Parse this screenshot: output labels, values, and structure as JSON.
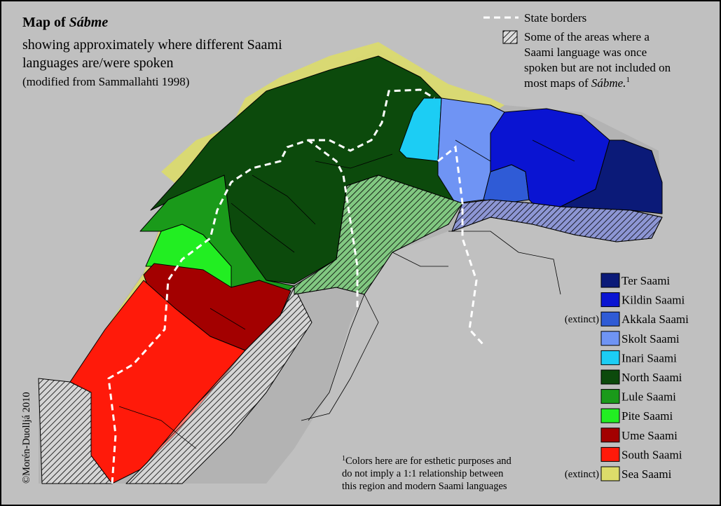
{
  "title": {
    "prefix": "Map of",
    "name": "Sábme"
  },
  "subtitle": [
    "showing approximately where different Saami",
    "languages are/were spoken"
  ],
  "source": "(modified from Sammallahti 1998)",
  "key": {
    "borders": "State borders",
    "hatched": {
      "lines": [
        "Some of the areas where a",
        "Saami language was once",
        "spoken but are not included on"
      ],
      "last": "most maps of",
      "name": "Sábme.",
      "note": "1"
    }
  },
  "legend": [
    {
      "name": "Ter Saami",
      "color": "#0b1a78"
    },
    {
      "name": "Kildin Saami",
      "color": "#0a14d2"
    },
    {
      "name": "Akkala Saami",
      "color": "#2f5bd6",
      "status": "(extinct)"
    },
    {
      "name": "Skolt Saami",
      "color": "#6f94f4"
    },
    {
      "name": "Inari Saami",
      "color": "#1ccdf4"
    },
    {
      "name": "North Saami",
      "color": "#0c4a0c"
    },
    {
      "name": "Lule Saami",
      "color": "#1a9a1a"
    },
    {
      "name": "Pite Saami",
      "color": "#22ee22"
    },
    {
      "name": "Ume Saami",
      "color": "#a30000"
    },
    {
      "name": "South Saami",
      "color": "#ff1a0a"
    },
    {
      "name": "Sea Saami",
      "color": "#dcdc6a",
      "status": "(extinct)"
    }
  ],
  "footnote": {
    "mark": "1",
    "lines": [
      "Colors here are for esthetic purposes and",
      "do not imply a 1:1 relationship between",
      "this region and modern Saami languages"
    ]
  },
  "credit": "©Morén-Duolljá 2010"
}
